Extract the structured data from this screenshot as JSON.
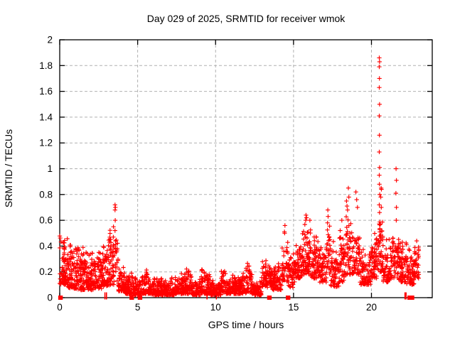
{
  "page": {
    "background_color": "#ffffff"
  },
  "chart_data": {
    "type": "scatter",
    "title": "Day 029 of 2025, SRMTID for receiver wmok",
    "xlabel": "GPS time / hours",
    "ylabel": "SRMTID / TECUs",
    "xlim": [
      0,
      23.9
    ],
    "ylim": [
      0,
      2
    ],
    "xticks": [
      0,
      5,
      10,
      15,
      20
    ],
    "xtick_labels": [
      "0",
      "5",
      "10",
      "15",
      "20"
    ],
    "yticks": [
      0,
      0.2,
      0.4,
      0.6,
      0.8,
      1,
      1.2,
      1.4,
      1.6,
      1.8,
      2
    ],
    "ytick_labels": [
      "0",
      "0.2",
      "0.4",
      "0.6",
      "0.8",
      "1",
      "1.2",
      "1.4",
      "1.6",
      "1.8",
      "2"
    ],
    "grid": true,
    "grid_style": "dashed",
    "legend_position": "none",
    "marker": "plus",
    "marker_color": "#ff0000",
    "grid_color": "#b0b0b0",
    "axis_color": "#000000",
    "density_segments_format": [
      "t_start_hours",
      "t_end_hours",
      "point_count",
      "y_min_tecus",
      "y_max_tecus",
      "low_skew"
    ],
    "density_segments": [
      [
        0.0,
        0.55,
        80,
        0.1,
        0.5,
        1.6
      ],
      [
        0.55,
        1.1,
        80,
        0.07,
        0.44,
        1.5
      ],
      [
        1.1,
        1.65,
        80,
        0.06,
        0.42,
        1.5
      ],
      [
        1.65,
        2.2,
        75,
        0.06,
        0.4,
        1.5
      ],
      [
        2.2,
        2.7,
        65,
        0.07,
        0.4,
        1.4
      ],
      [
        2.7,
        3.2,
        70,
        0.09,
        0.5,
        1.4
      ],
      [
        3.2,
        3.5,
        40,
        0.1,
        0.56,
        1.3
      ],
      [
        3.5,
        3.75,
        18,
        0.12,
        0.6,
        1.0
      ],
      [
        3.75,
        4.15,
        50,
        0.05,
        0.26,
        1.6
      ],
      [
        4.15,
        4.7,
        65,
        0.03,
        0.2,
        1.7
      ],
      [
        4.7,
        5.3,
        70,
        0.02,
        0.16,
        1.7
      ],
      [
        5.3,
        5.85,
        65,
        0.03,
        0.22,
        1.8
      ],
      [
        5.85,
        6.6,
        90,
        0.02,
        0.17,
        1.8
      ],
      [
        6.6,
        7.4,
        95,
        0.02,
        0.17,
        1.8
      ],
      [
        7.4,
        8.05,
        75,
        0.03,
        0.22,
        1.8
      ],
      [
        8.05,
        8.45,
        48,
        0.03,
        0.26,
        1.7
      ],
      [
        8.45,
        9.05,
        70,
        0.02,
        0.15,
        1.7
      ],
      [
        9.05,
        9.65,
        70,
        0.03,
        0.24,
        1.7
      ],
      [
        9.65,
        10.35,
        80,
        0.02,
        0.16,
        1.7
      ],
      [
        10.35,
        10.65,
        36,
        0.04,
        0.3,
        1.5
      ],
      [
        10.65,
        11.35,
        80,
        0.03,
        0.19,
        1.7
      ],
      [
        11.35,
        11.95,
        70,
        0.03,
        0.22,
        1.7
      ],
      [
        11.95,
        12.35,
        46,
        0.04,
        0.32,
        1.6
      ],
      [
        12.35,
        12.95,
        70,
        0.02,
        0.15,
        1.7
      ],
      [
        12.95,
        13.65,
        85,
        0.08,
        0.33,
        1.5
      ],
      [
        13.65,
        14.25,
        70,
        0.06,
        0.3,
        1.5
      ],
      [
        14.25,
        14.65,
        40,
        0.12,
        0.56,
        1.3
      ],
      [
        14.65,
        15.15,
        60,
        0.08,
        0.4,
        1.4
      ],
      [
        15.15,
        15.55,
        55,
        0.15,
        0.5,
        1.3
      ],
      [
        15.55,
        16.1,
        70,
        0.18,
        0.64,
        1.3
      ],
      [
        16.1,
        16.65,
        65,
        0.15,
        0.56,
        1.4
      ],
      [
        16.65,
        17.1,
        55,
        0.12,
        0.45,
        1.4
      ],
      [
        17.1,
        17.35,
        30,
        0.15,
        0.66,
        1.2
      ],
      [
        17.35,
        17.95,
        65,
        0.08,
        0.45,
        1.5
      ],
      [
        17.95,
        18.3,
        42,
        0.12,
        0.58,
        1.3
      ],
      [
        18.3,
        18.7,
        45,
        0.18,
        0.76,
        1.3
      ],
      [
        18.7,
        19.25,
        60,
        0.18,
        0.6,
        1.4
      ],
      [
        19.25,
        19.95,
        75,
        0.1,
        0.44,
        1.5
      ],
      [
        19.95,
        20.35,
        50,
        0.15,
        0.52,
        1.4
      ],
      [
        20.35,
        20.75,
        55,
        0.2,
        0.62,
        1.3
      ],
      [
        20.75,
        21.25,
        60,
        0.12,
        0.46,
        1.5
      ],
      [
        21.25,
        21.75,
        60,
        0.15,
        0.56,
        1.4
      ],
      [
        21.75,
        22.25,
        60,
        0.12,
        0.5,
        1.5
      ],
      [
        22.25,
        22.75,
        60,
        0.1,
        0.45,
        1.5
      ],
      [
        22.75,
        23.05,
        35,
        0.15,
        0.42,
        1.4
      ]
    ],
    "outlier_points": [
      [
        3.45,
        0.55
      ],
      [
        3.44,
        0.47
      ],
      [
        3.46,
        0.4
      ],
      [
        3.55,
        0.72
      ],
      [
        3.57,
        0.7
      ],
      [
        3.55,
        0.68
      ],
      [
        3.56,
        0.6
      ],
      [
        3.55,
        0.52
      ],
      [
        3.57,
        0.44
      ],
      [
        3.56,
        0.36
      ],
      [
        14.45,
        0.56
      ],
      [
        14.43,
        0.5
      ],
      [
        15.8,
        0.64
      ],
      [
        15.83,
        0.62
      ],
      [
        15.78,
        0.6
      ],
      [
        16.05,
        0.6
      ],
      [
        17.2,
        0.68
      ],
      [
        17.22,
        0.63
      ],
      [
        17.18,
        0.58
      ],
      [
        18.1,
        0.6
      ],
      [
        18.4,
        0.75
      ],
      [
        18.43,
        0.71
      ],
      [
        18.47,
        0.68
      ],
      [
        18.52,
        0.85
      ],
      [
        18.55,
        0.78
      ],
      [
        19.0,
        0.82
      ],
      [
        19.05,
        0.76
      ],
      [
        19.1,
        0.7
      ],
      [
        20.5,
        1.86
      ],
      [
        20.52,
        1.83
      ],
      [
        20.5,
        1.79
      ],
      [
        20.51,
        1.7
      ],
      [
        20.5,
        1.63
      ],
      [
        20.52,
        1.5
      ],
      [
        20.5,
        1.41
      ],
      [
        20.51,
        1.26
      ],
      [
        20.5,
        1.13
      ],
      [
        20.52,
        1.01
      ],
      [
        20.5,
        0.95
      ],
      [
        20.51,
        0.88
      ],
      [
        20.53,
        0.8
      ],
      [
        20.5,
        0.72
      ],
      [
        20.52,
        0.66
      ],
      [
        20.62,
        0.85
      ],
      [
        20.64,
        0.84
      ],
      [
        20.6,
        0.78
      ],
      [
        20.63,
        0.7
      ],
      [
        21.58,
        1.0
      ],
      [
        21.6,
        0.91
      ],
      [
        21.57,
        0.81
      ],
      [
        21.6,
        0.7
      ],
      [
        21.59,
        0.6
      ],
      [
        22.9,
        0.44
      ]
    ],
    "zero_value_times_square": [
      0.05,
      4.62,
      5.15,
      13.45,
      14.65,
      22.45,
      22.6
    ],
    "zero_value_times_thin": [
      2.9,
      3.0,
      9.45,
      10.05,
      22.15,
      22.22
    ]
  }
}
